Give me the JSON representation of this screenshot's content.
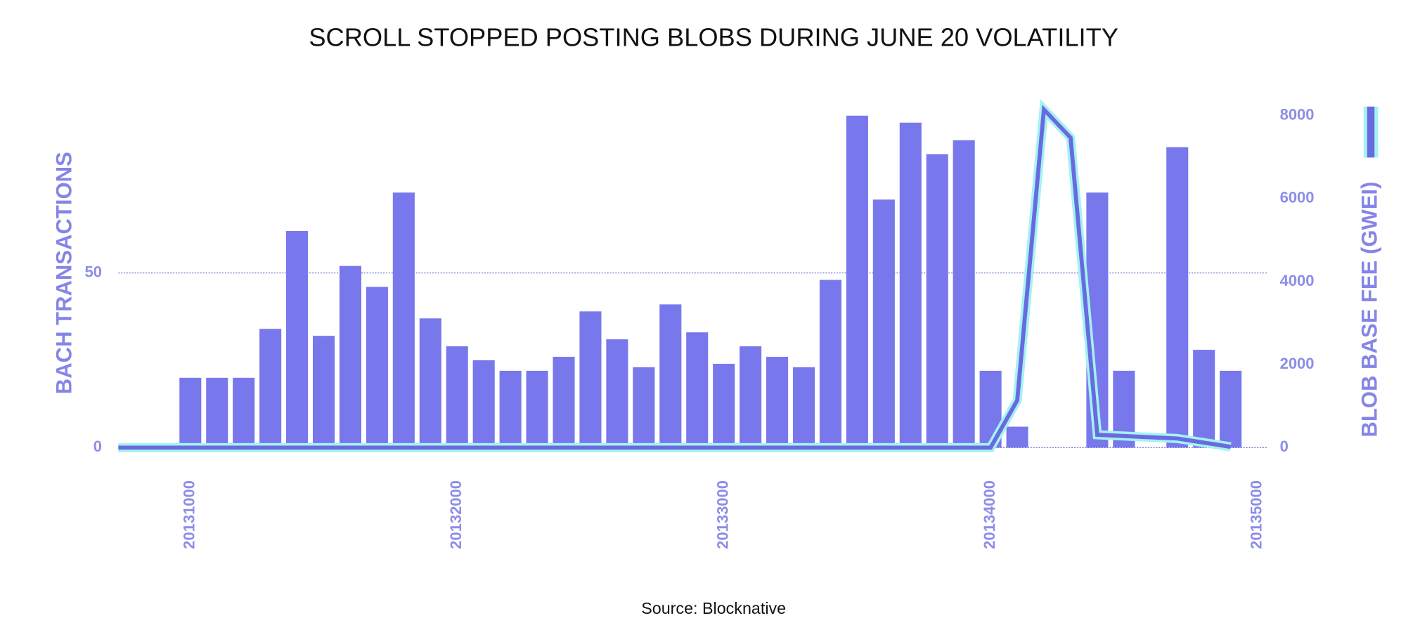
{
  "chart_data": {
    "type": "bar",
    "title": "SCROLL STOPPED POSTING BLOBS DURING JUNE 20 VOLATILITY",
    "source": "Source: Blocknative",
    "ylabel": "BACH TRANSACTIONS",
    "y2label": "BLOB BASE FEE (GWEI)",
    "xlim": [
      20130730,
      20135040
    ],
    "xticks": [
      20131000,
      20132000,
      20133000,
      20134000,
      20135000
    ],
    "ylim": [
      0,
      95
    ],
    "yticks": [
      0,
      50
    ],
    "y2lim": [
      0,
      8000
    ],
    "y2ticks": [
      0,
      2000,
      4000,
      6000,
      8000
    ],
    "grid": true,
    "series": [
      {
        "type": "bar",
        "color": "#7878ec",
        "x": [
          20131000,
          20131100,
          20131200,
          20131300,
          20131400,
          20131500,
          20131600,
          20131700,
          20131800,
          20131900,
          20132000,
          20132100,
          20132200,
          20132300,
          20132400,
          20132500,
          20132600,
          20132700,
          20132800,
          20132900,
          20133000,
          20133100,
          20133200,
          20133300,
          20133400,
          20133500,
          20133600,
          20133700,
          20133800,
          20133900,
          20134000,
          20134100,
          20134400,
          20134500,
          20134700,
          20134800,
          20134900
        ],
        "values": [
          20,
          20,
          20,
          34,
          62,
          32,
          52,
          46,
          73,
          37,
          29,
          25,
          22,
          22,
          26,
          39,
          31,
          23,
          41,
          33,
          24,
          29,
          26,
          23,
          48,
          95,
          71,
          93,
          84,
          88,
          22,
          6,
          73,
          22,
          86,
          28,
          22
        ]
      },
      {
        "type": "line",
        "axis": "y2",
        "color": "#6a6ae0",
        "halo": "#a4f2f2",
        "x": [
          20130730,
          20134000,
          20134100,
          20134200,
          20134300,
          20134400,
          20134700,
          20134900
        ],
        "values": [
          0,
          0,
          1140,
          8150,
          7470,
          310,
          220,
          20
        ]
      }
    ]
  }
}
